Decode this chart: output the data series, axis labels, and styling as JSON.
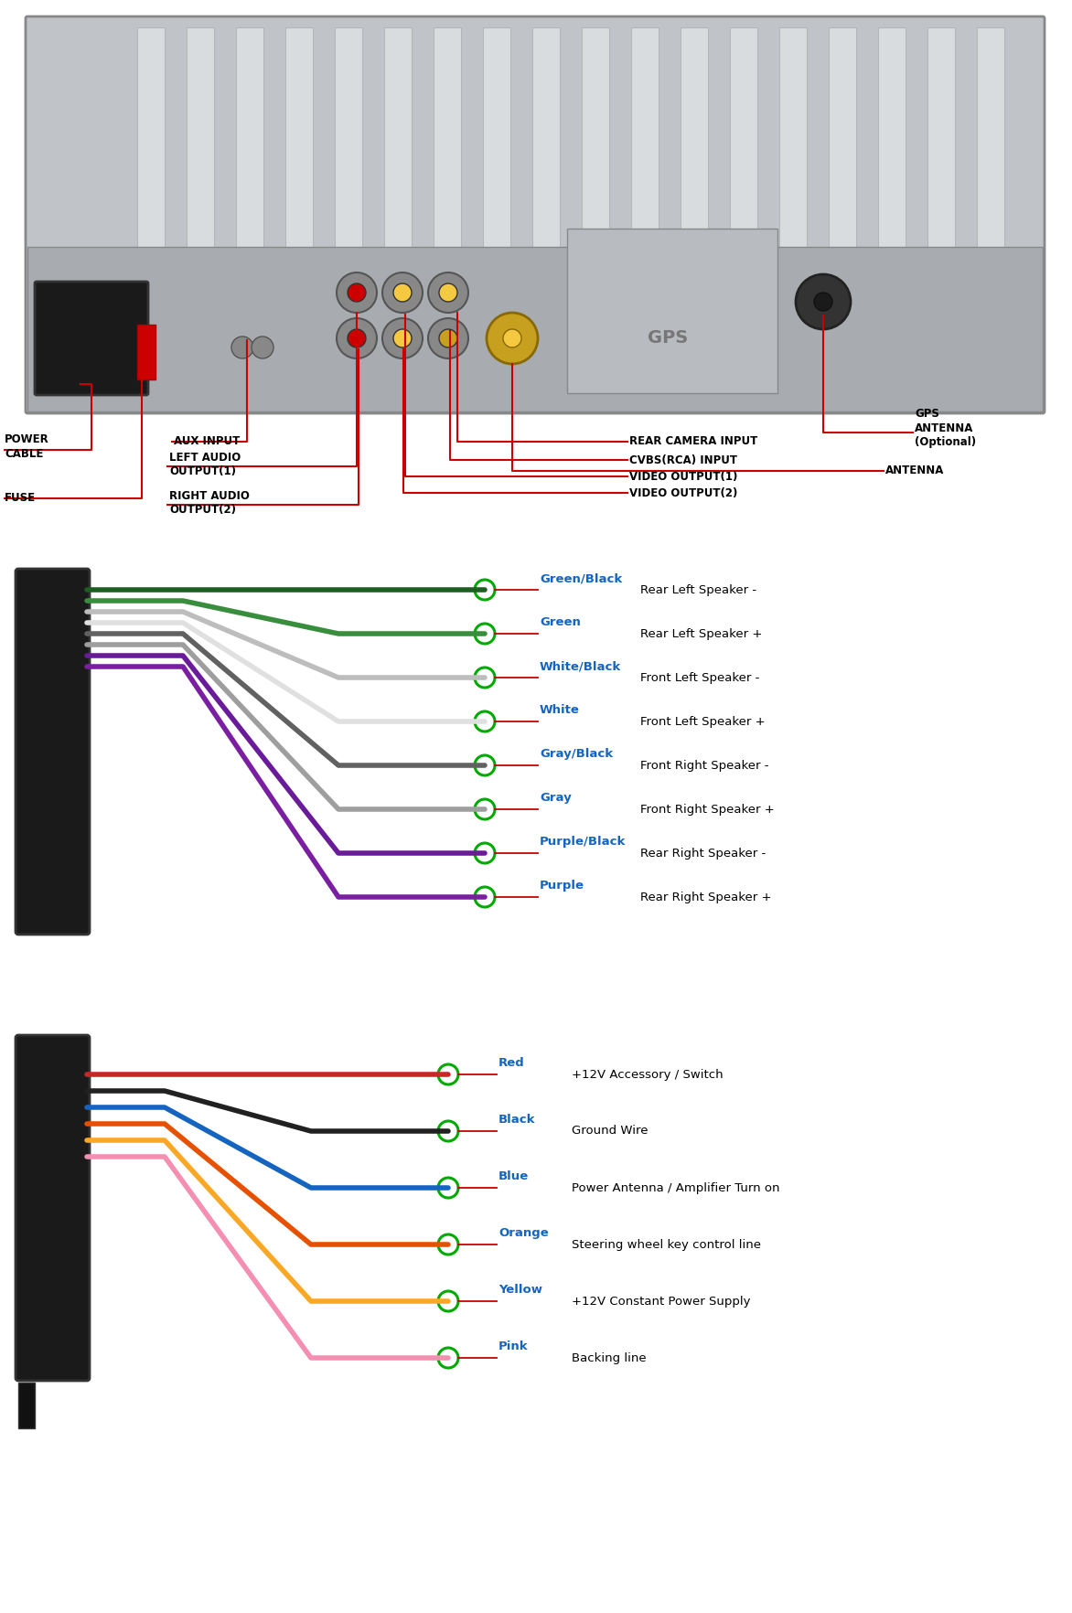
{
  "bg_color": "#ffffff",
  "speaker_wires": [
    {
      "color": "#1b5e20",
      "label_color": "#1565c0",
      "label": "Green/Black",
      "description": "Rear Left Speaker -"
    },
    {
      "color": "#388e3c",
      "label_color": "#1565c0",
      "label": "Green",
      "description": "Rear Left Speaker +"
    },
    {
      "color": "#bdbdbd",
      "label_color": "#1565c0",
      "label": "White/Black",
      "description": "Front Left Speaker -"
    },
    {
      "color": "#e0e0e0",
      "label_color": "#1565c0",
      "label": "White",
      "description": "Front Left Speaker +"
    },
    {
      "color": "#616161",
      "label_color": "#1565c0",
      "label": "Gray/Black",
      "description": "Front Right Speaker -"
    },
    {
      "color": "#9e9e9e",
      "label_color": "#1565c0",
      "label": "Gray",
      "description": "Front Right Speaker +"
    },
    {
      "color": "#6a1b9a",
      "label_color": "#1565c0",
      "label": "Purple/Black",
      "description": "Rear Right Speaker -"
    },
    {
      "color": "#7b1fa2",
      "label_color": "#1565c0",
      "label": "Purple",
      "description": "Rear Right Speaker +"
    }
  ],
  "power_wires": [
    {
      "color": "#c62828",
      "label_color": "#1565c0",
      "label": "Red",
      "description": "+12V Accessory / Switch"
    },
    {
      "color": "#212121",
      "label_color": "#1565c0",
      "label": "Black",
      "description": "Ground Wire"
    },
    {
      "color": "#1565c0",
      "label_color": "#1565c0",
      "label": "Blue",
      "description": "Power Antenna / Amplifier Turn on"
    },
    {
      "color": "#e65100",
      "label_color": "#1565c0",
      "label": "Orange",
      "description": "Steering wheel key control line"
    },
    {
      "color": "#f9a825",
      "label_color": "#1565c0",
      "label": "Yellow",
      "description": "+12V Constant Power Supply"
    },
    {
      "color": "#f48fb1",
      "label_color": "#1565c0",
      "label": "Pink",
      "description": "Backing line"
    }
  ],
  "wire_linewidth": 4,
  "line_color": "#cc0000",
  "circle_color": "#00aa00"
}
